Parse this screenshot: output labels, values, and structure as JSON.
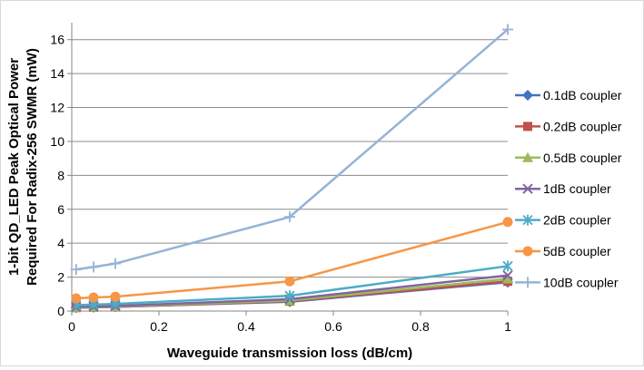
{
  "chart_data": {
    "type": "line",
    "title": "",
    "xlabel": "Waveguide transmission loss (dB/cm)",
    "ylabel_lines": [
      "1-bit QD_LED  Peak Optical Power",
      "Required For Radix-256 SWMR (mW)"
    ],
    "xlim": [
      0,
      1
    ],
    "ylim": [
      0,
      17
    ],
    "xticks": [
      0,
      0.2,
      0.4,
      0.6,
      0.8,
      1
    ],
    "xtick_labels": [
      "0",
      "0.2",
      "0.4",
      "0.6",
      "0.8",
      "1"
    ],
    "yticks": [
      0,
      2,
      4,
      6,
      8,
      10,
      12,
      14,
      16
    ],
    "ytick_labels": [
      "0",
      "2",
      "4",
      "6",
      "8",
      "10",
      "12",
      "14",
      "16"
    ],
    "grid": "horizontal",
    "legend_position": "right",
    "x": [
      0.01,
      0.05,
      0.1,
      0.5,
      1
    ],
    "series": [
      {
        "name": "0.1dB coupler",
        "color": "#4472C4",
        "marker": "diamond",
        "values": [
          0.2,
          0.22,
          0.25,
          0.55,
          1.7
        ]
      },
      {
        "name": "0.2dB coupler",
        "color": "#C0504D",
        "marker": "square",
        "values": [
          0.2,
          0.22,
          0.25,
          0.58,
          1.75
        ]
      },
      {
        "name": "0.5dB coupler",
        "color": "#9BBB59",
        "marker": "triangle",
        "values": [
          0.22,
          0.24,
          0.27,
          0.62,
          1.9
        ]
      },
      {
        "name": "1dB coupler",
        "color": "#8064A2",
        "marker": "x",
        "values": [
          0.25,
          0.27,
          0.3,
          0.7,
          2.1
        ]
      },
      {
        "name": "2dB coupler",
        "color": "#4BACC6",
        "marker": "star",
        "values": [
          0.35,
          0.38,
          0.42,
          0.9,
          2.65
        ]
      },
      {
        "name": "5dB coupler",
        "color": "#F79646",
        "marker": "circle",
        "values": [
          0.75,
          0.8,
          0.85,
          1.75,
          5.25
        ]
      },
      {
        "name": "10dB coupler",
        "color": "#95B3D7",
        "marker": "plus",
        "values": [
          2.45,
          2.6,
          2.8,
          5.55,
          16.6
        ]
      }
    ]
  }
}
